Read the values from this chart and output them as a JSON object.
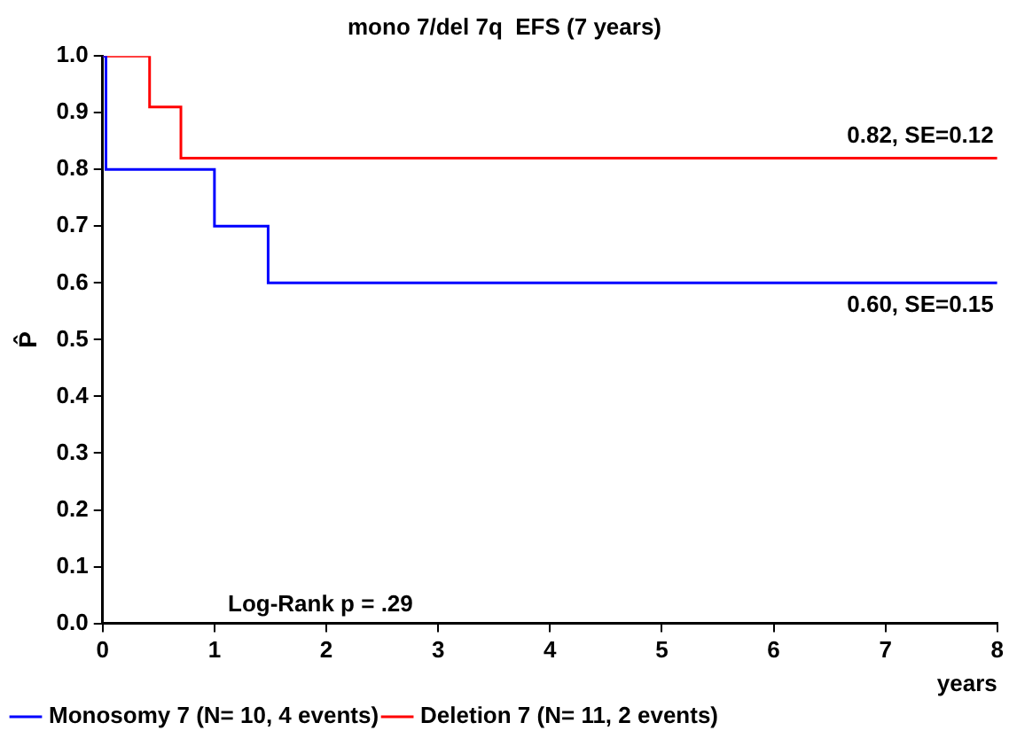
{
  "chart_data": {
    "type": "step",
    "title": "mono 7/del 7q  EFS (7 years)",
    "xlabel": "years",
    "ylabel": "P̂",
    "series": [
      {
        "name": "Monosomy 7 (N= 10, 4 events)",
        "color": "#0000ff",
        "x": [
          0,
          0.03,
          1,
          1.48,
          8
        ],
        "values": [
          1,
          0.8,
          0.7,
          0.6,
          0.6
        ]
      },
      {
        "name": "Deletion 7 (N= 11, 2 events)",
        "color": "#ff0000",
        "x": [
          0,
          0.42,
          0.7,
          8
        ],
        "values": [
          1,
          0.91,
          0.82,
          0.82
        ]
      }
    ],
    "xlim": [
      0,
      8
    ],
    "xticks": [
      0,
      1,
      2,
      3,
      4,
      5,
      6,
      7,
      8
    ],
    "ylim": [
      0,
      1
    ],
    "yticks": [
      {
        "value": 0,
        "label": "0.0"
      },
      {
        "value": 0.1,
        "label": "0.1"
      },
      {
        "value": 0.2,
        "label": "0.2"
      },
      {
        "value": 0.3,
        "label": "0.3"
      },
      {
        "value": 0.4,
        "label": "0.4"
      },
      {
        "value": 0.5,
        "label": "0.5"
      },
      {
        "value": 0.6,
        "label": "0.6"
      },
      {
        "value": 0.7,
        "label": "0.7"
      },
      {
        "value": 0.8,
        "label": "0.8"
      },
      {
        "value": 0.9,
        "label": "0.9"
      },
      {
        "value": 1,
        "label": "1.0"
      }
    ],
    "annotations": [
      {
        "text": "0.82, SE=0.12",
        "x": 8,
        "y": 0.82
      },
      {
        "text": "0.60, SE=0.15",
        "x": 8,
        "y": 0.6
      },
      "Log-Rank p = .29"
    ],
    "legend": "bottom left",
    "grid": false
  }
}
